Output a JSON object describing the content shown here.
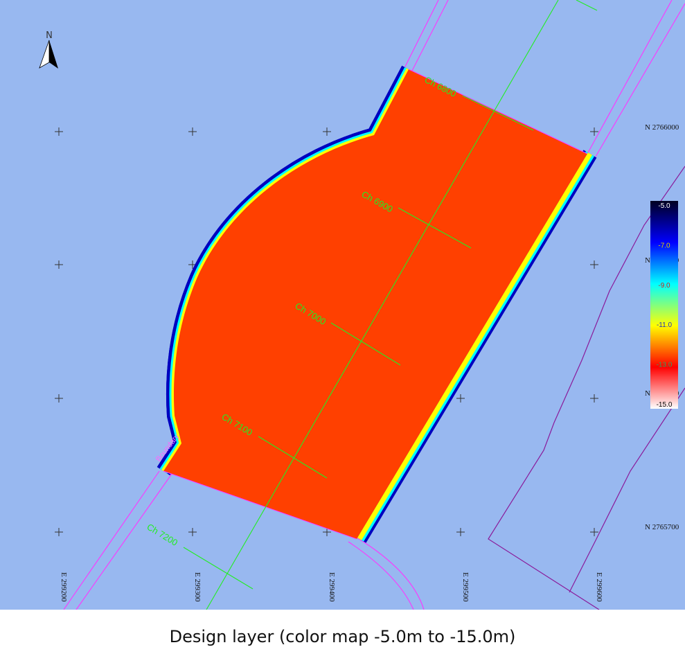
{
  "colors": {
    "background": "#98b8f0",
    "design_fill": "#ff4000",
    "centerline": "#22ee22",
    "boundary": "#ff33ff",
    "cadastre": "#8a1a9a"
  },
  "north_arrow": {
    "label": "N"
  },
  "grid": {
    "northings": [
      "N 2766000",
      "N 2765900",
      "N 2765800",
      "N 2765700"
    ],
    "eastings": [
      "E 299200",
      "E 299300",
      "E 299400",
      "E 299500",
      "E 299600"
    ]
  },
  "chainages": [
    "Ch 6800",
    "Ch 6900",
    "Ch 7000",
    "Ch 7100",
    "Ch 7200"
  ],
  "boundary_label": "Boundary",
  "legend": {
    "ticks": [
      "-5.0",
      "-7.0",
      "-9.0",
      "-11.0",
      "-13.0",
      "-15.0"
    ],
    "tick_colors": [
      "#ffffff",
      "#e0d000",
      "#cc2020",
      "#2030c0",
      "#30a060",
      "#000000"
    ],
    "gradient": [
      "#000020",
      "#0000ff",
      "#00ffff",
      "#ffff00",
      "#ff0000",
      "#ffffff"
    ]
  },
  "caption": "Design layer (color map -5.0m to -15.0m)"
}
